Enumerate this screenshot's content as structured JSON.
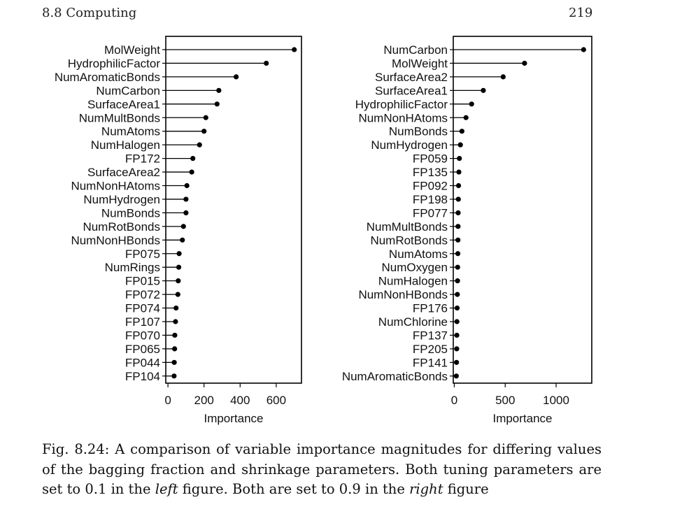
{
  "header": {
    "section": "8.8  Computing",
    "page_number": "219"
  },
  "caption": {
    "part1": "Fig. 8.24: A comparison of variable importance magnitudes for differing values of the bagging fraction and shrinkage parameters. Both tuning parameters are set to 0.1 in the ",
    "em1": "left",
    "part2": " figure. Both are set to 0.9 in the ",
    "em2": "right",
    "part3": " figure"
  },
  "chart_data": [
    {
      "type": "dot",
      "xlabel": "Importance",
      "xlim": [
        -12,
        740
      ],
      "xticks": [
        0,
        200,
        400,
        600
      ],
      "grid": false,
      "categories": [
        "MolWeight",
        "HydrophilicFactor",
        "NumAromaticBonds",
        "NumCarbon",
        "SurfaceArea1",
        "NumMultBonds",
        "NumAtoms",
        "NumHalogen",
        "FP172",
        "SurfaceArea2",
        "NumNonHAtoms",
        "NumHydrogen",
        "NumBonds",
        "NumRotBonds",
        "NumNonHBonds",
        "FP075",
        "NumRings",
        "FP015",
        "FP072",
        "FP074",
        "FP107",
        "FP070",
        "FP065",
        "FP044",
        "FP104"
      ],
      "values": [
        700,
        545,
        378,
        282,
        272,
        210,
        200,
        175,
        138,
        132,
        105,
        100,
        100,
        86,
        80,
        62,
        60,
        57,
        55,
        45,
        42,
        38,
        37,
        35,
        34
      ]
    },
    {
      "type": "dot",
      "xlabel": "Importance",
      "xlim": [
        -10,
        1350
      ],
      "xticks": [
        0,
        500,
        1000
      ],
      "grid": false,
      "categories": [
        "NumCarbon",
        "MolWeight",
        "SurfaceArea2",
        "SurfaceArea1",
        "HydrophilicFactor",
        "NumNonHAtoms",
        "NumBonds",
        "NumHydrogen",
        "FP059",
        "FP135",
        "FP092",
        "FP198",
        "FP077",
        "NumMultBonds",
        "NumRotBonds",
        "NumAtoms",
        "NumOxygen",
        "NumHalogen",
        "NumNonHBonds",
        "FP176",
        "NumChlorine",
        "FP137",
        "FP205",
        "FP141",
        "NumAromaticBonds"
      ],
      "values": [
        1270,
        690,
        480,
        285,
        170,
        115,
        75,
        60,
        50,
        45,
        42,
        40,
        38,
        37,
        36,
        35,
        33,
        32,
        30,
        28,
        26,
        25,
        24,
        22,
        20
      ]
    }
  ]
}
